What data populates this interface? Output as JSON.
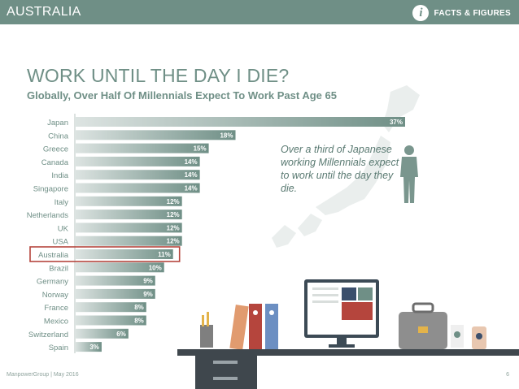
{
  "header": {
    "title": "AUSTRALIA",
    "badge_icon": "i",
    "badge_text": "FACTS & FIGURES"
  },
  "headline": "WORK UNTIL THE DAY I DIE?",
  "subhead": "Globally, Over Half Of Millennials Expect To Work Past Age 65",
  "callout": "Over a third of Japanese working Millennials expect to work until the day they die.",
  "footer": {
    "source": "ManpowerGroup  |  May 2016",
    "page": "6"
  },
  "colors": {
    "header_bg": "#6f8f86",
    "bar_start": "#dde4e2",
    "bar_end": "#6f8f86",
    "highlight": "#b5453d"
  },
  "chart_data": {
    "type": "bar",
    "orientation": "horizontal",
    "categories": [
      "Japan",
      "China",
      "Greece",
      "Canada",
      "India",
      "Singapore",
      "Italy",
      "Netherlands",
      "UK",
      "USA",
      "Australia",
      "Brazil",
      "Germany",
      "Norway",
      "France",
      "Mexico",
      "Switzerland",
      "Spain"
    ],
    "values": [
      37,
      18,
      15,
      14,
      14,
      14,
      12,
      12,
      12,
      12,
      11,
      10,
      9,
      9,
      8,
      8,
      6,
      3
    ],
    "value_labels": [
      "37%",
      "18%",
      "15%",
      "14%",
      "14%",
      "14%",
      "12%",
      "12%",
      "12%",
      "12%",
      "11%",
      "10%",
      "9%",
      "9%",
      "8%",
      "8%",
      "6%",
      "3%"
    ],
    "highlight": "Australia",
    "xlim": [
      0,
      37
    ]
  }
}
